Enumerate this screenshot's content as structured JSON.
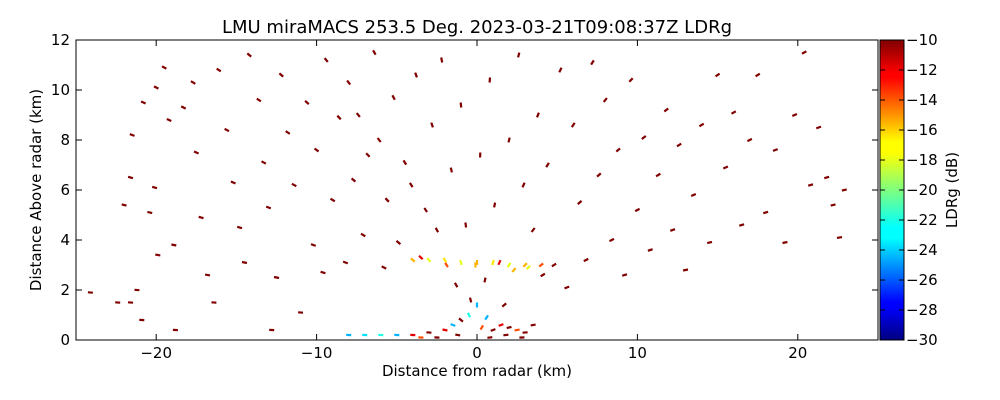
{
  "chart_data": {
    "type": "heatmap",
    "title": "LMU miraMACS 253.5 Deg. 2023-03-21T09:08:37Z  LDRg",
    "xlabel": "Distance from radar (km)",
    "ylabel": "Distance Above radar  (km)",
    "xlim": [
      -25,
      25
    ],
    "ylim": [
      0,
      12
    ],
    "xticks": [
      -20,
      -10,
      0,
      10,
      20
    ],
    "xtick_labels": [
      "−20",
      "−10",
      "0",
      "10",
      "20"
    ],
    "yticks": [
      0,
      2,
      4,
      6,
      8,
      10,
      12
    ],
    "ytick_labels": [
      "0",
      "2",
      "4",
      "6",
      "8",
      "10",
      "12"
    ],
    "colorbar": {
      "label": "LDRg (dB)",
      "range": [
        -30,
        -10
      ],
      "ticks": [
        -10,
        -12,
        -14,
        -16,
        -18,
        -20,
        -22,
        -24,
        -26,
        -28,
        -30
      ],
      "tick_labels": [
        "−10",
        "−12",
        "−14",
        "−16",
        "−18",
        "−20",
        "−22",
        "−24",
        "−26",
        "−28",
        "−30"
      ],
      "colormap": "jet"
    },
    "points": [
      [
        -24.1,
        1.9,
        -10
      ],
      [
        -22.4,
        1.5,
        -10
      ],
      [
        -21.6,
        1.5,
        -10
      ],
      [
        -21.2,
        2.0,
        -10
      ],
      [
        -20.9,
        0.8,
        -10
      ],
      [
        -22.0,
        5.4,
        -10
      ],
      [
        -21.6,
        6.5,
        -10
      ],
      [
        -21.5,
        8.2,
        -10
      ],
      [
        -20.8,
        9.5,
        -10
      ],
      [
        -20.0,
        10.1,
        -10
      ],
      [
        -19.5,
        10.9,
        -10
      ],
      [
        -19.2,
        8.8,
        -10
      ],
      [
        -20.1,
        6.1,
        -10
      ],
      [
        -20.4,
        5.1,
        -10
      ],
      [
        -19.9,
        3.4,
        -10
      ],
      [
        -18.9,
        3.8,
        -10
      ],
      [
        -18.8,
        0.4,
        -10
      ],
      [
        -18.3,
        9.3,
        -10
      ],
      [
        -17.7,
        10.3,
        -10
      ],
      [
        -17.5,
        7.5,
        -10
      ],
      [
        -17.2,
        4.9,
        -10
      ],
      [
        -16.8,
        2.6,
        -10
      ],
      [
        -16.4,
        1.5,
        -10
      ],
      [
        -16.1,
        10.8,
        -10
      ],
      [
        -15.6,
        8.4,
        -10
      ],
      [
        -15.2,
        6.3,
        -10
      ],
      [
        -14.8,
        4.5,
        -10
      ],
      [
        -14.5,
        3.1,
        -10
      ],
      [
        -14.2,
        11.4,
        -10
      ],
      [
        -13.6,
        9.6,
        -10
      ],
      [
        -13.3,
        7.1,
        -10
      ],
      [
        -13.0,
        5.3,
        -10
      ],
      [
        -12.8,
        0.4,
        -10
      ],
      [
        -12.5,
        2.5,
        -10
      ],
      [
        -12.2,
        10.6,
        -10
      ],
      [
        -11.8,
        8.3,
        -10
      ],
      [
        -11.4,
        6.2,
        -10
      ],
      [
        -11.0,
        1.1,
        -10
      ],
      [
        -10.6,
        9.5,
        -10
      ],
      [
        -10.2,
        3.8,
        -10
      ],
      [
        -10.0,
        7.6,
        -10
      ],
      [
        -9.6,
        2.7,
        -10
      ],
      [
        -9.4,
        11.2,
        -10
      ],
      [
        -9.0,
        5.6,
        -10
      ],
      [
        -8.6,
        8.9,
        -10
      ],
      [
        -8.2,
        3.1,
        -10
      ],
      [
        -8.0,
        10.3,
        -10
      ],
      [
        -7.7,
        6.4,
        -10
      ],
      [
        -7.4,
        9.0,
        -10
      ],
      [
        -7.1,
        4.2,
        -10
      ],
      [
        -6.8,
        7.4,
        -10
      ],
      [
        -6.4,
        11.5,
        -10
      ],
      [
        -6.1,
        8.0,
        -10
      ],
      [
        -5.8,
        2.9,
        -10
      ],
      [
        -5.6,
        5.6,
        -10
      ],
      [
        -5.2,
        9.7,
        -10
      ],
      [
        -4.9,
        3.9,
        -10
      ],
      [
        -4.5,
        7.1,
        -10
      ],
      [
        -4.1,
        6.2,
        -10
      ],
      [
        -3.8,
        10.6,
        -10
      ],
      [
        -3.5,
        3.3,
        -12
      ],
      [
        -3.2,
        5.2,
        -10
      ],
      [
        -2.8,
        8.6,
        -10
      ],
      [
        -2.5,
        4.4,
        -10
      ],
      [
        -2.2,
        11.2,
        -10
      ],
      [
        -1.9,
        3.0,
        -14
      ],
      [
        -1.6,
        6.8,
        -10
      ],
      [
        -1.3,
        2.2,
        -10
      ],
      [
        -1.0,
        9.4,
        -10
      ],
      [
        -0.7,
        4.6,
        -10
      ],
      [
        -0.4,
        1.6,
        -10
      ],
      [
        -0.1,
        3.0,
        -16
      ],
      [
        0.2,
        7.4,
        -10
      ],
      [
        0.5,
        2.4,
        -10
      ],
      [
        0.8,
        10.4,
        -10
      ],
      [
        1.1,
        5.4,
        -10
      ],
      [
        1.4,
        3.1,
        -12
      ],
      [
        1.7,
        1.4,
        -10
      ],
      [
        2.0,
        8.0,
        -10
      ],
      [
        2.3,
        2.8,
        -16
      ],
      [
        2.6,
        11.4,
        -10
      ],
      [
        2.9,
        6.2,
        -10
      ],
      [
        3.2,
        2.9,
        -18
      ],
      [
        3.5,
        4.4,
        -10
      ],
      [
        3.8,
        9.0,
        -10
      ],
      [
        4.1,
        2.6,
        -10
      ],
      [
        4.4,
        7.0,
        -10
      ],
      [
        4.8,
        3.0,
        -10
      ],
      [
        5.2,
        10.8,
        -10
      ],
      [
        5.6,
        2.1,
        -10
      ],
      [
        6.0,
        8.6,
        -10
      ],
      [
        6.4,
        5.5,
        -10
      ],
      [
        6.8,
        3.2,
        -10
      ],
      [
        7.2,
        11.1,
        -10
      ],
      [
        7.6,
        6.6,
        -10
      ],
      [
        8.0,
        9.6,
        -10
      ],
      [
        8.4,
        4.0,
        -10
      ],
      [
        8.8,
        7.6,
        -10
      ],
      [
        9.2,
        2.6,
        -10
      ],
      [
        9.6,
        10.4,
        -10
      ],
      [
        10.0,
        5.2,
        -10
      ],
      [
        10.4,
        8.1,
        -10
      ],
      [
        10.8,
        3.6,
        -10
      ],
      [
        11.3,
        6.6,
        -10
      ],
      [
        11.8,
        9.2,
        -10
      ],
      [
        12.2,
        4.4,
        -10
      ],
      [
        12.6,
        7.8,
        -10
      ],
      [
        13.0,
        2.8,
        -10
      ],
      [
        13.5,
        5.8,
        -10
      ],
      [
        14.0,
        8.6,
        -10
      ],
      [
        14.5,
        3.9,
        -10
      ],
      [
        15.0,
        10.6,
        -10
      ],
      [
        15.5,
        6.9,
        -10
      ],
      [
        16.0,
        9.1,
        -10
      ],
      [
        16.5,
        4.6,
        -10
      ],
      [
        17.0,
        8.0,
        -10
      ],
      [
        17.5,
        10.6,
        -10
      ],
      [
        18.0,
        5.1,
        -10
      ],
      [
        18.6,
        7.6,
        -10
      ],
      [
        19.2,
        3.9,
        -10
      ],
      [
        19.8,
        9.0,
        -10
      ],
      [
        20.4,
        11.5,
        -10
      ],
      [
        20.8,
        6.2,
        -10
      ],
      [
        21.3,
        8.5,
        -10
      ],
      [
        21.8,
        6.5,
        -10
      ],
      [
        22.2,
        5.4,
        -10
      ],
      [
        22.6,
        4.1,
        -10
      ],
      [
        22.9,
        6.0,
        -10
      ],
      [
        -4.0,
        3.2,
        -16
      ],
      [
        -3.0,
        3.2,
        -18
      ],
      [
        -2.0,
        3.2,
        -17
      ],
      [
        -1.0,
        3.1,
        -18
      ],
      [
        0.0,
        3.1,
        -16
      ],
      [
        1.0,
        3.1,
        -17
      ],
      [
        2.0,
        3.0,
        -18
      ],
      [
        3.0,
        3.0,
        -16
      ],
      [
        4.0,
        3.0,
        -14
      ],
      [
        -8.0,
        0.2,
        -24
      ],
      [
        -7.0,
        0.2,
        -23
      ],
      [
        -6.0,
        0.2,
        -22
      ],
      [
        -5.0,
        0.2,
        -24
      ],
      [
        -4.0,
        0.2,
        -12
      ],
      [
        -3.0,
        0.3,
        -10
      ],
      [
        -2.0,
        0.4,
        -12
      ],
      [
        -1.5,
        0.6,
        -24
      ],
      [
        -1.0,
        0.8,
        -10
      ],
      [
        -0.5,
        1.0,
        -22
      ],
      [
        0.0,
        1.4,
        -24
      ],
      [
        0.3,
        0.5,
        -14
      ],
      [
        0.6,
        0.9,
        -24
      ],
      [
        1.0,
        0.4,
        -10
      ],
      [
        1.5,
        0.6,
        -12
      ],
      [
        2.0,
        0.5,
        -10
      ],
      [
        2.5,
        0.4,
        -14
      ],
      [
        3.0,
        0.3,
        -10
      ],
      [
        3.5,
        0.6,
        -10
      ],
      [
        -2.5,
        0.1,
        -10
      ],
      [
        -1.2,
        0.2,
        -10
      ],
      [
        0.8,
        0.1,
        -10
      ],
      [
        1.8,
        0.2,
        -10
      ],
      [
        2.8,
        0.1,
        -10
      ],
      [
        -3.5,
        0.1,
        -14
      ]
    ]
  }
}
